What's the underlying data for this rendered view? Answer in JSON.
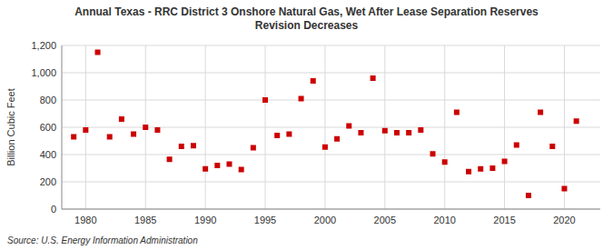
{
  "chart_data": {
    "type": "scatter",
    "title": "Annual Texas - RRC District 3 Onshore Natural Gas, Wet After Lease Separation Reserves\nRevision Decreases",
    "y_label": "Billion Cubic Feet",
    "source": "Source: U.S. Energy Information Administration",
    "color": "#cc0000",
    "marker": "square",
    "grid": true,
    "x": [
      1979,
      1980,
      1981,
      1982,
      1983,
      1984,
      1985,
      1986,
      1987,
      1988,
      1989,
      1990,
      1991,
      1992,
      1993,
      1994,
      1995,
      1996,
      1997,
      1998,
      1999,
      2000,
      2001,
      2002,
      2003,
      2004,
      2005,
      2006,
      2007,
      2008,
      2009,
      2010,
      2011,
      2012,
      2013,
      2014,
      2015,
      2016,
      2017,
      2018,
      2019,
      2020,
      2021
    ],
    "values": [
      530,
      580,
      1150,
      530,
      660,
      550,
      600,
      580,
      365,
      460,
      465,
      295,
      320,
      330,
      290,
      450,
      800,
      540,
      550,
      810,
      940,
      455,
      515,
      610,
      560,
      960,
      575,
      560,
      560,
      580,
      405,
      345,
      710,
      275,
      295,
      300,
      350,
      470,
      100,
      710,
      460,
      150,
      645
    ],
    "xlim": [
      1978,
      2023
    ],
    "ylim": [
      0,
      1200
    ],
    "xticks": [
      1980,
      1985,
      1990,
      1995,
      2000,
      2005,
      2010,
      2015,
      2020
    ],
    "yticks": [
      0,
      200,
      400,
      600,
      800,
      {
        "value": 1000,
        "label": "1,000"
      },
      {
        "value": 1200,
        "label": "1,200"
      }
    ]
  }
}
